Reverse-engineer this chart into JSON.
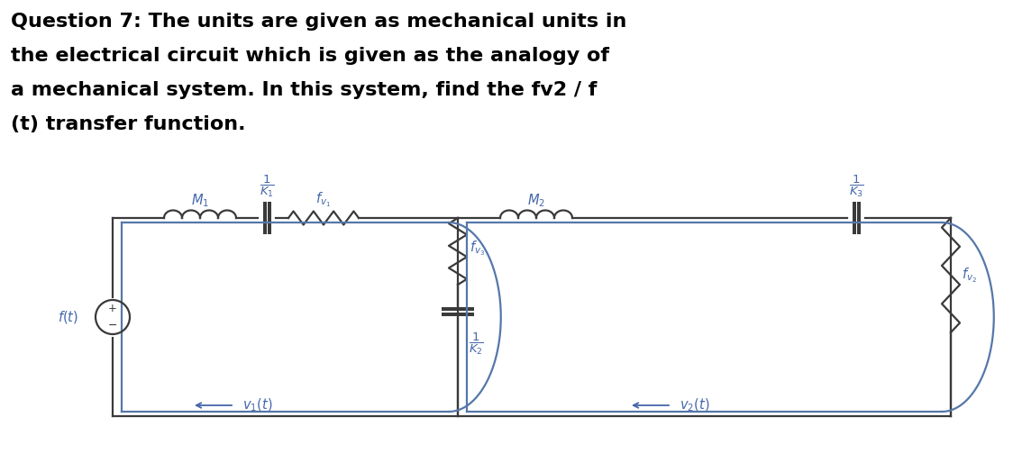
{
  "title_line1": "Question 7: The units are given as mechanical units in",
  "title_line2": "the electrical circuit which is given as the analogy of",
  "title_line3": "a mechanical system. In this system, find the fv2 / f",
  "title_line4": "(t) transfer function.",
  "title_fontsize": 16,
  "line_color": "#3a3a3a",
  "bg_color": "#ffffff",
  "loop_color": "#5577aa",
  "label_color": "#3a3a3a",
  "lbl_italic_color": "#4466aa"
}
